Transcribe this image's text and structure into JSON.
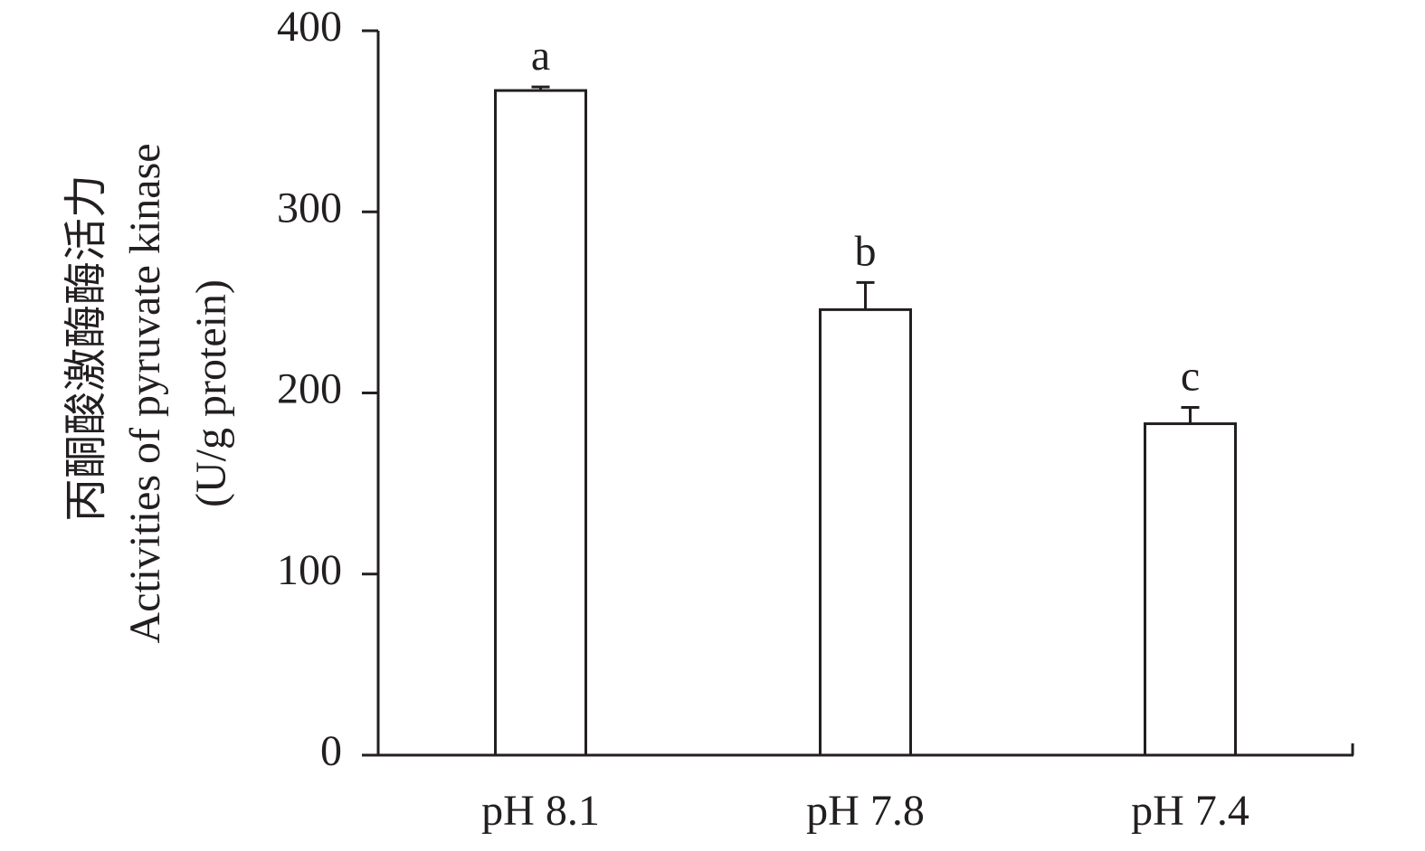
{
  "chart_data": {
    "type": "bar",
    "y_label_lines": [
      "丙酮酸激酶酶活力",
      "Activities of pyruvate kinase",
      "(U/g protein)"
    ],
    "categories": [
      "pH 8.1",
      "pH 7.8",
      "pH 7.4"
    ],
    "values": [
      367,
      246,
      183
    ],
    "errors": [
      2,
      15,
      9
    ],
    "letters": [
      "a",
      "b",
      "c"
    ],
    "color": "#ffffff",
    "ylim": [
      0,
      400
    ],
    "yticks": [
      0,
      100,
      200,
      300,
      400
    ],
    "grid": false
  }
}
